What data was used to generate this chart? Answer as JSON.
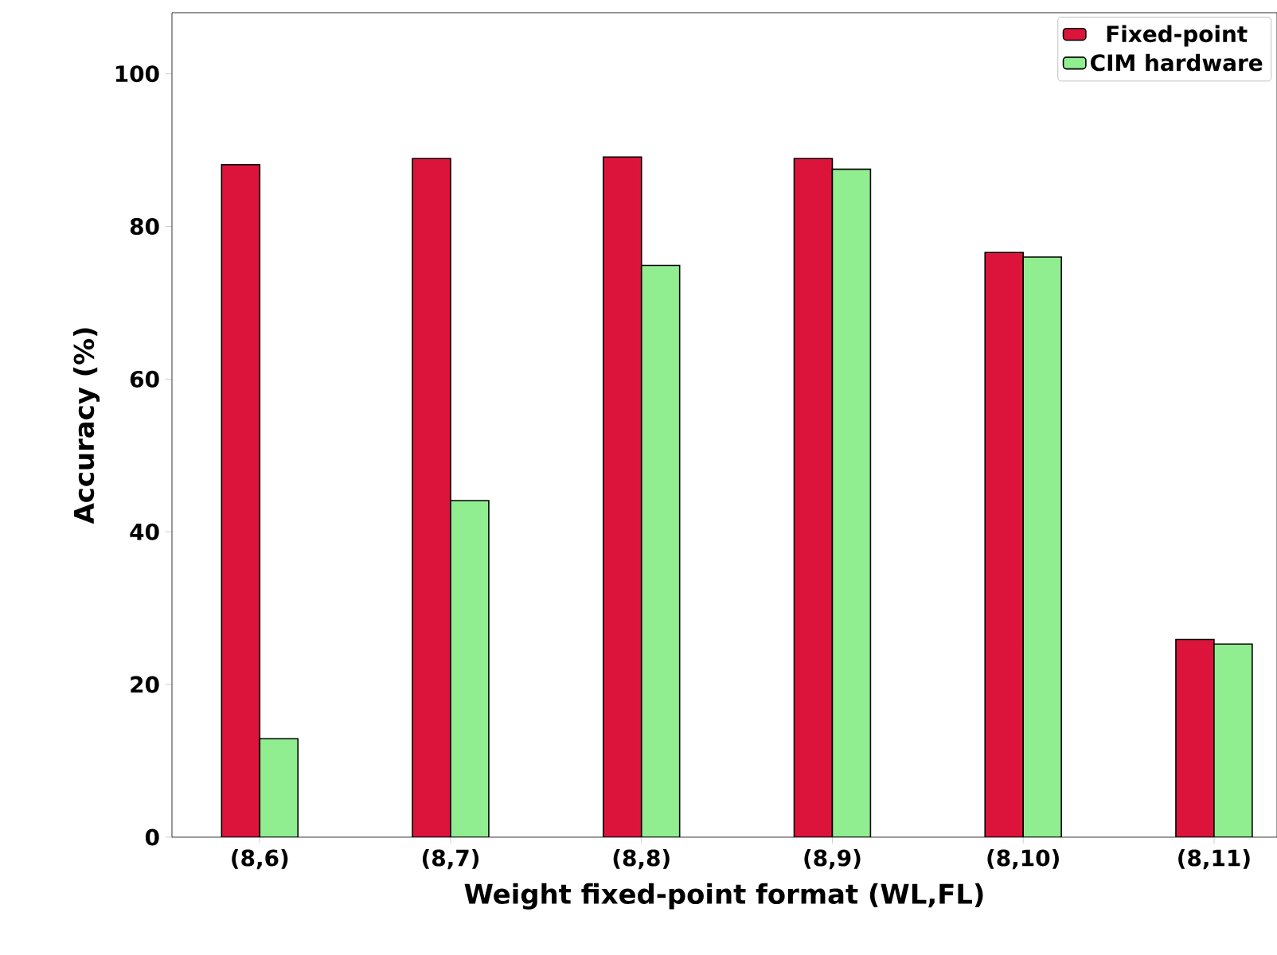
{
  "chart_data": {
    "type": "bar",
    "xlabel": "Weight fixed-point format (WL,FL)",
    "ylabel": "Accuracy (%)",
    "categories": [
      "(8,6)",
      "(8,7)",
      "(8,8)",
      "(8,9)",
      "(8,10)",
      "(8,11)"
    ],
    "series": [
      {
        "name": "Fixed-point",
        "color": "#dc143c",
        "values": [
          88.1,
          88.9,
          89.1,
          88.9,
          76.6,
          25.9
        ]
      },
      {
        "name": "CIM hardware",
        "color": "#90ee90",
        "values": [
          12.9,
          44.1,
          74.9,
          87.5,
          76.0,
          25.3
        ]
      }
    ],
    "ylim": [
      0,
      108
    ],
    "yticks": [
      0,
      20,
      40,
      60,
      80,
      100
    ],
    "grid": false,
    "legend": "top right"
  }
}
